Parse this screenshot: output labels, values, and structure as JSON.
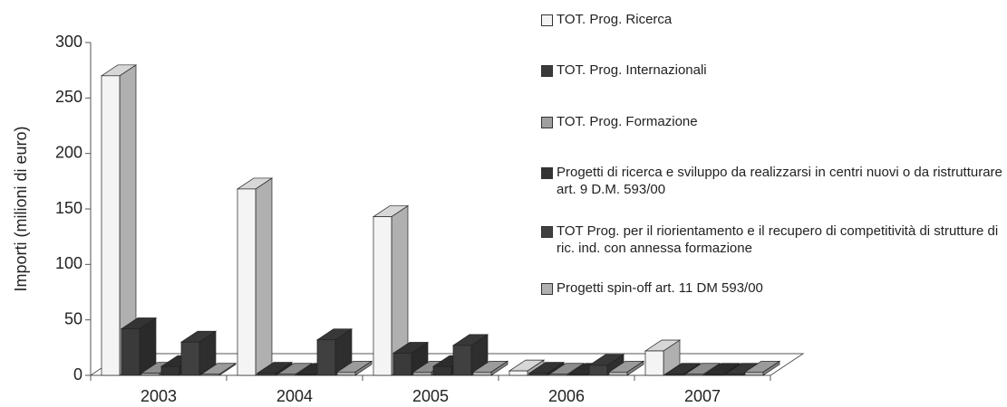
{
  "chart_data": {
    "type": "bar3d",
    "y_label": "Importi (milioni di euro)",
    "categories": [
      "2003",
      "2004",
      "2005",
      "2006",
      "2007"
    ],
    "series": [
      {
        "name": "TOT. Prog. Ricerca",
        "color": "#f4f4f4",
        "values": [
          270,
          168,
          143,
          4,
          22
        ]
      },
      {
        "name": "TOT. Prog. Internazionali",
        "color": "#3a3a3a",
        "values": [
          42,
          2,
          20,
          2,
          1
        ]
      },
      {
        "name": "TOT. Prog. Formazione",
        "color": "#a0a0a0",
        "values": [
          2,
          1,
          3,
          1,
          1
        ]
      },
      {
        "name": "Progetti di ricerca e sviluppo da realizzarsi in centri nuovi o da ristrutturare art. 9 D.M. 593/00",
        "color": "#333333",
        "values": [
          8,
          1,
          8,
          1,
          1
        ]
      },
      {
        "name": "TOT Prog. per il riorientamento e il recupero di competitività di strutture di ric. ind. con annessa formazione",
        "color": "#404040",
        "values": [
          30,
          32,
          27,
          9,
          1
        ]
      },
      {
        "name": "Progetti spin-off art. 11 DM 593/00",
        "color": "#b0b0b0",
        "values": [
          1,
          3,
          3,
          3,
          3
        ]
      }
    ],
    "ylim": [
      0,
      300
    ],
    "yticks": [
      0,
      50,
      100,
      150,
      200,
      250,
      300
    ]
  }
}
